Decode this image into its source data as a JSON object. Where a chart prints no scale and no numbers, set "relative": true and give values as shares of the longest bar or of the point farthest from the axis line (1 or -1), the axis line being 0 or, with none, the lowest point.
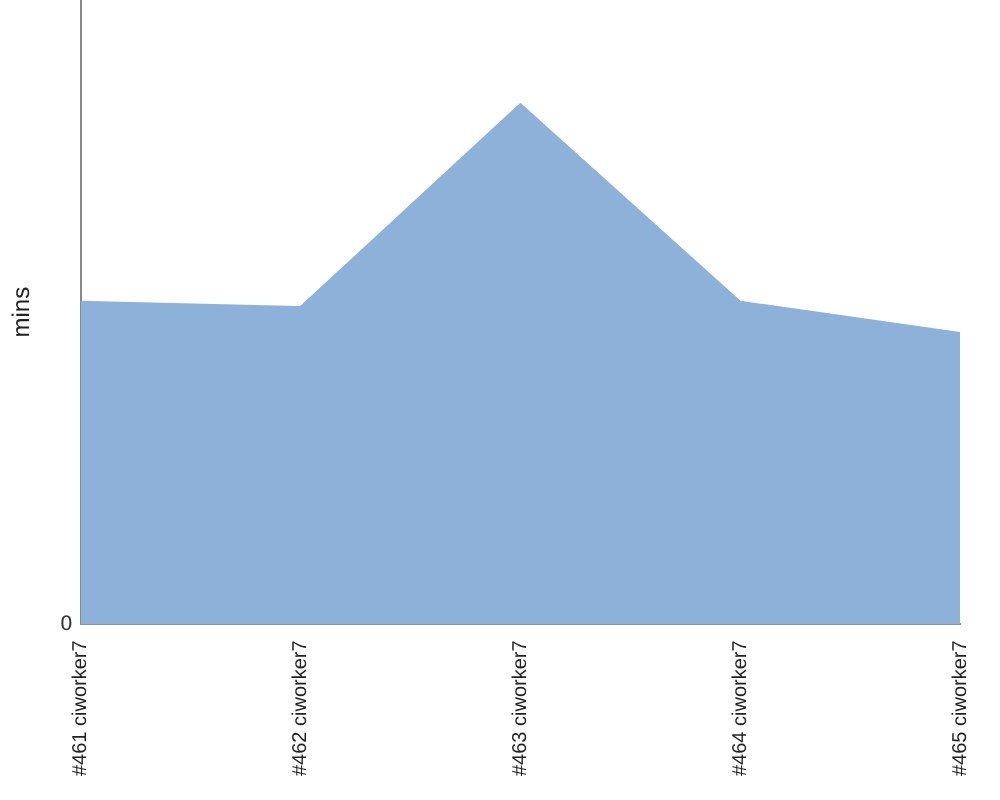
{
  "chart_data": {
    "type": "area",
    "relative": true,
    "ylabel": "mins",
    "categories": [
      "#461 ciworker7",
      "#462 ciworker7",
      "#463 ciworker7",
      "#464 ciworker7",
      "#465 ciworker7"
    ],
    "series": [
      {
        "color": "#8eb1da",
        "values": [
          0.62,
          0.61,
          1,
          0.62,
          0.56
        ]
      }
    ],
    "annotations": [
      "0"
    ],
    "grid": false,
    "legend": false,
    "marker": "none"
  }
}
